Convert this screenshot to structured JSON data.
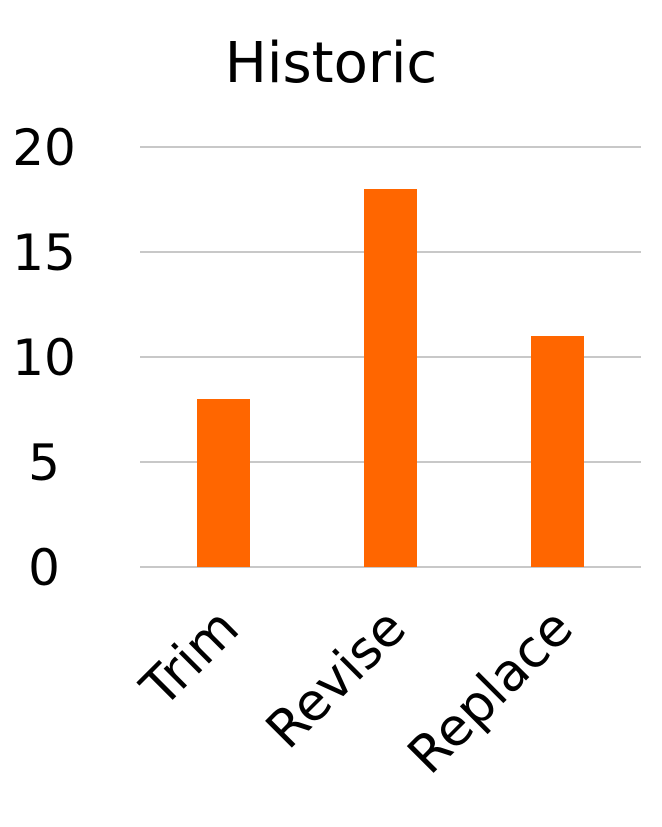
{
  "chart_data": {
    "type": "bar",
    "title": "Historic",
    "xlabel": "",
    "ylabel": "",
    "categories": [
      "Trim",
      "Revise",
      "Replace"
    ],
    "values": [
      8,
      18,
      11
    ],
    "ylim": [
      0,
      20
    ],
    "yticks": [
      "0",
      "5",
      "10",
      "15",
      "20"
    ],
    "grid": true,
    "legend": "none",
    "bar_color": "#FF6600",
    "grid_color": "#C8C8C8"
  }
}
